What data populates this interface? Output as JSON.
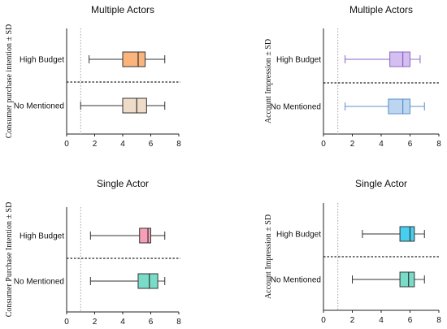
{
  "chart_data": [
    {
      "type": "box",
      "title": "Multiple Actors",
      "ylabel": "Consumer purchase intention ± SD",
      "categories": [
        "High Budget",
        "No Mentioned"
      ],
      "xlim": [
        0,
        8
      ],
      "xticks": [
        "0",
        "2",
        "4",
        "6",
        "8"
      ],
      "reference_x": 1,
      "boxes": [
        {
          "category": "High Budget",
          "min": 1.6,
          "q1": 4.0,
          "median": 5.1,
          "q3": 5.6,
          "max": 7.0,
          "fill": "#fbb57c",
          "stroke": "#333333"
        },
        {
          "category": "No Mentioned",
          "min": 1.0,
          "q1": 4.0,
          "median": 5.0,
          "q3": 5.7,
          "max": 7.0,
          "fill": "#efdcc8",
          "stroke": "#333333"
        }
      ]
    },
    {
      "type": "box",
      "title": "Multiple Actors",
      "ylabel": "Account Impression ± SD",
      "categories": [
        "High Budget",
        "No Mentioned"
      ],
      "xlim": [
        0,
        8
      ],
      "xticks": [
        "0",
        "2",
        "4",
        "6",
        "8"
      ],
      "reference_x": 1,
      "boxes": [
        {
          "category": "High Budget",
          "min": 1.5,
          "q1": 4.6,
          "median": 5.5,
          "q3": 6.0,
          "max": 6.7,
          "fill": "#d4bff0",
          "stroke": "#8a64c4"
        },
        {
          "category": "No Mentioned",
          "min": 1.5,
          "q1": 4.5,
          "median": 5.5,
          "q3": 6.0,
          "max": 7.0,
          "fill": "#bcd5f0",
          "stroke": "#5b8fc8"
        }
      ]
    },
    {
      "type": "box",
      "title": "Single Actor",
      "ylabel": "Consumer Purchase Intention ± SD",
      "categories": [
        "High Budget",
        "No Mentioned"
      ],
      "xlim": [
        0,
        8
      ],
      "xticks": [
        "0",
        "2",
        "4",
        "6",
        "8"
      ],
      "reference_x": 1,
      "boxes": [
        {
          "category": "High Budget",
          "min": 1.7,
          "q1": 5.2,
          "median": 5.8,
          "q3": 6.0,
          "max": 7.0,
          "fill": "#f5a0b6",
          "stroke": "#333333"
        },
        {
          "category": "No Mentioned",
          "min": 1.7,
          "q1": 5.1,
          "median": 5.9,
          "q3": 6.5,
          "max": 7.0,
          "fill": "#78dcc8",
          "stroke": "#333333"
        }
      ]
    },
    {
      "type": "box",
      "title": "Single Actor",
      "ylabel": "Account Impression ± SD",
      "categories": [
        "High Budget",
        "No Mentioned"
      ],
      "xlim": [
        0,
        8
      ],
      "xticks": [
        "0",
        "2",
        "4",
        "6",
        "8"
      ],
      "reference_x": 1,
      "boxes": [
        {
          "category": "High Budget",
          "min": 2.7,
          "q1": 5.3,
          "median": 6.0,
          "q3": 6.3,
          "max": 7.0,
          "fill": "#48cff0",
          "stroke": "#333333"
        },
        {
          "category": "No Mentioned",
          "min": 2.0,
          "q1": 5.3,
          "median": 5.9,
          "q3": 6.3,
          "max": 7.0,
          "fill": "#78dcc8",
          "stroke": "#333333"
        }
      ]
    }
  ]
}
